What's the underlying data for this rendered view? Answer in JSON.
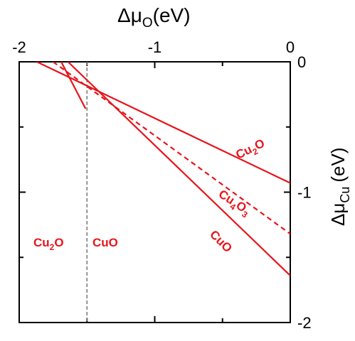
{
  "chart_data": {
    "type": "line",
    "title": "",
    "xlabel": {
      "base": "Δμ",
      "sub": "O",
      "unit": "(eV)"
    },
    "ylabel": {
      "base": "Δμ",
      "sub": "Cu",
      "unit": "(eV)"
    },
    "xlim": [
      -2,
      0
    ],
    "ylim": [
      -2,
      0
    ],
    "x_ticks": [
      {
        "value": -2,
        "label": "-2"
      },
      {
        "value": -1,
        "label": "-1"
      },
      {
        "value": 0,
        "label": "0"
      }
    ],
    "y_ticks": [
      {
        "value": 0,
        "label": "0"
      },
      {
        "value": -1,
        "label": "-1"
      },
      {
        "value": -2,
        "label": "-2"
      }
    ],
    "x_minor_ticks": [
      -1.5,
      -0.5
    ],
    "y_minor_ticks": [
      -0.5,
      -1.5
    ],
    "grid": false,
    "colors": {
      "series": "#e8141b",
      "boundary": "#777777"
    },
    "series": [
      {
        "id": "cu2o",
        "label": {
          "base": "Cu",
          "sub": "2",
          "tail": "O"
        },
        "style": "solid",
        "x": [
          -1.87,
          0
        ],
        "y": [
          0,
          -0.93
        ]
      },
      {
        "id": "cu4o3",
        "label": {
          "base": "Cu",
          "sub": "4",
          "tail": "O",
          "sub2": "3"
        },
        "style": "dashed",
        "x": [
          -1.75,
          0
        ],
        "y": [
          0,
          -1.32
        ]
      },
      {
        "id": "cuo",
        "label": {
          "base": "CuO"
        },
        "style": "solid",
        "x": [
          -1.64,
          0
        ],
        "y": [
          0,
          -1.64
        ]
      },
      {
        "id": "cu2o_steep",
        "style": "solid",
        "x": [
          -1.69,
          -1.51
        ],
        "y": [
          0,
          -0.36
        ]
      }
    ],
    "boundary": {
      "x": -1.5,
      "style": "dashed"
    },
    "region_labels": [
      {
        "label": {
          "base": "Cu",
          "sub": "2",
          "tail": "O"
        }
      },
      {
        "label": {
          "base": "CuO"
        }
      }
    ]
  }
}
